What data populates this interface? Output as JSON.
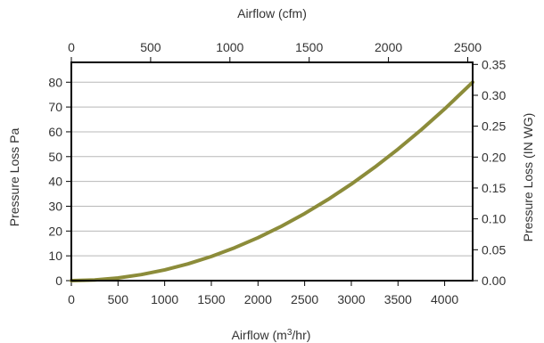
{
  "chart_data": {
    "type": "line",
    "xlabel": {
      "pre": "Airflow (m",
      "sup": "3",
      "post": "/hr)"
    },
    "x2label": "Airflow (cfm)",
    "ylabel": "Pressure Loss Pa",
    "y2label": "Pressure Loss (IN WG)",
    "xlim": [
      0,
      4300
    ],
    "ylim": [
      0,
      88
    ],
    "x2lim": [
      0,
      2531
    ],
    "y2lim": [
      0,
      0.3533
    ],
    "xticks": [
      "0",
      "500",
      "1000",
      "1500",
      "2000",
      "2500",
      "3000",
      "3500",
      "4000"
    ],
    "x2ticks": [
      "0",
      "500",
      "1000",
      "1500",
      "2000",
      "2500"
    ],
    "yticks": [
      "0",
      "10",
      "20",
      "30",
      "40",
      "50",
      "60",
      "70",
      "80"
    ],
    "y2ticks": [
      "0.00",
      "0.05",
      "0.10",
      "0.15",
      "0.20",
      "0.25",
      "0.30",
      "0.35"
    ],
    "grid": "horizontal",
    "legend": "none",
    "line_color": "#8c8c3a",
    "series": [
      {
        "x": [
          0,
          250,
          500,
          750,
          1000,
          1250,
          1500,
          1750,
          2000,
          2250,
          2500,
          2750,
          3000,
          3250,
          3500,
          3750,
          4000,
          4300
        ],
        "y": [
          0.0,
          0.27,
          1.08,
          2.43,
          4.33,
          6.76,
          9.74,
          13.25,
          17.31,
          21.9,
          27.04,
          32.72,
          38.94,
          45.7,
          53.0,
          60.84,
          69.22,
          80.0
        ]
      }
    ]
  }
}
